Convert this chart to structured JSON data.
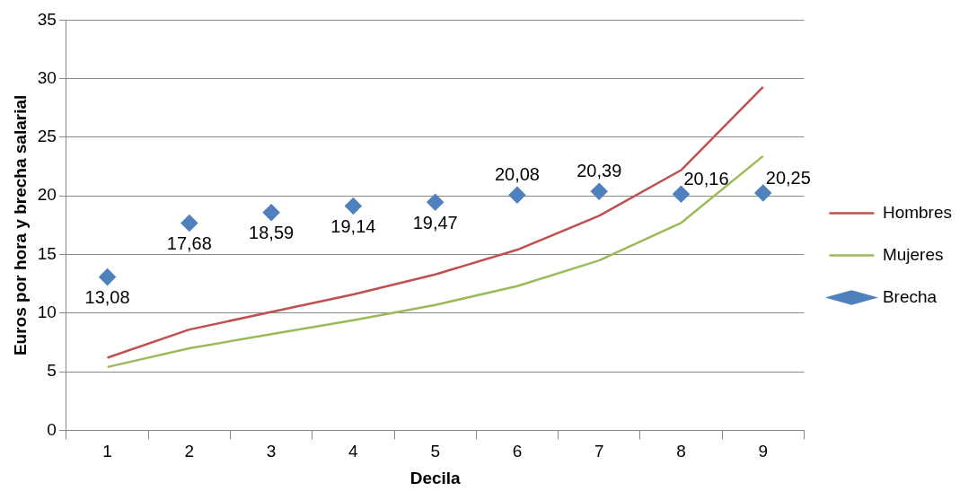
{
  "chart_data": {
    "type": "line",
    "xlabel": "Decila",
    "ylabel": "Euros por hora y brecha salarial",
    "categories": [
      "1",
      "2",
      "3",
      "4",
      "5",
      "6",
      "7",
      "8",
      "9"
    ],
    "ylim": [
      0,
      35
    ],
    "yticks": [
      0,
      5,
      10,
      15,
      20,
      25,
      30,
      35
    ],
    "grid": "y",
    "legend": "right",
    "series": [
      {
        "name": "Hombres",
        "type": "line",
        "marker": "none",
        "color": "#c0504d",
        "values": [
          6.2,
          8.6,
          10.1,
          11.6,
          13.3,
          15.4,
          18.3,
          22.2,
          29.3
        ]
      },
      {
        "name": "Mujeres",
        "type": "line",
        "marker": "none",
        "color": "#9bbb59",
        "values": [
          5.4,
          7.0,
          8.2,
          9.4,
          10.7,
          12.3,
          14.5,
          17.7,
          23.4
        ]
      },
      {
        "name": "Brecha",
        "type": "scatter",
        "marker": "diamond",
        "color": "#4f81bd",
        "values": [
          13.08,
          17.68,
          18.59,
          19.14,
          19.47,
          20.08,
          20.39,
          20.16,
          20.25
        ],
        "value_labels": [
          "13,08",
          "17,68",
          "18,59",
          "19,14",
          "19,47",
          "20,08",
          "20,39",
          "20,16",
          "20,25"
        ]
      }
    ]
  }
}
